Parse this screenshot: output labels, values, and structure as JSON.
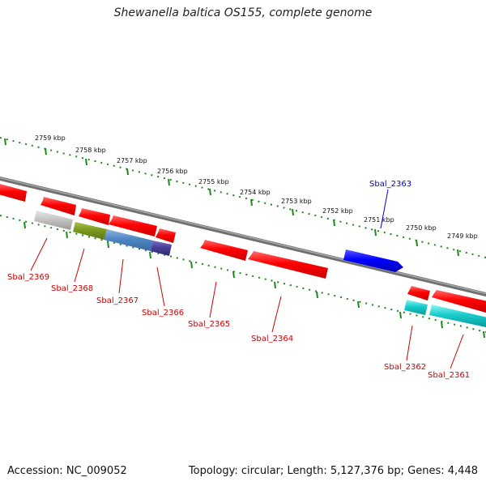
{
  "header": {
    "title": "Shewanella baltica OS155, complete genome"
  },
  "footer": {
    "accession": "Accession: NC_009052",
    "summary": "Topology: circular; Length: 5,127,376 bp; Genes: 4,448"
  },
  "map": {
    "colors": {
      "backbone": "#808080",
      "tick": "#1a8a1a",
      "forward_label": "#0000cc",
      "reverse_label": "#cc0000"
    },
    "kbp_labels": [
      "2759 kbp",
      "2758 kbp",
      "2757 kbp",
      "2756 kbp",
      "2755 kbp",
      "2754 kbp",
      "2753 kbp",
      "2752 kbp",
      "2751 kbp",
      "2750 kbp",
      "2749 kbp"
    ],
    "genes": [
      {
        "name": "Sbal_2369",
        "strand": "reverse"
      },
      {
        "name": "Sbal_2368",
        "strand": "reverse"
      },
      {
        "name": "Sbal_2367",
        "strand": "reverse"
      },
      {
        "name": "Sbal_2366",
        "strand": "reverse"
      },
      {
        "name": "Sbal_2365",
        "strand": "reverse"
      },
      {
        "name": "Sbal_2364",
        "strand": "reverse"
      },
      {
        "name": "Sbal_2363",
        "strand": "forward"
      },
      {
        "name": "Sbal_2362",
        "strand": "reverse"
      },
      {
        "name": "Sbal_2361",
        "strand": "reverse"
      }
    ]
  }
}
